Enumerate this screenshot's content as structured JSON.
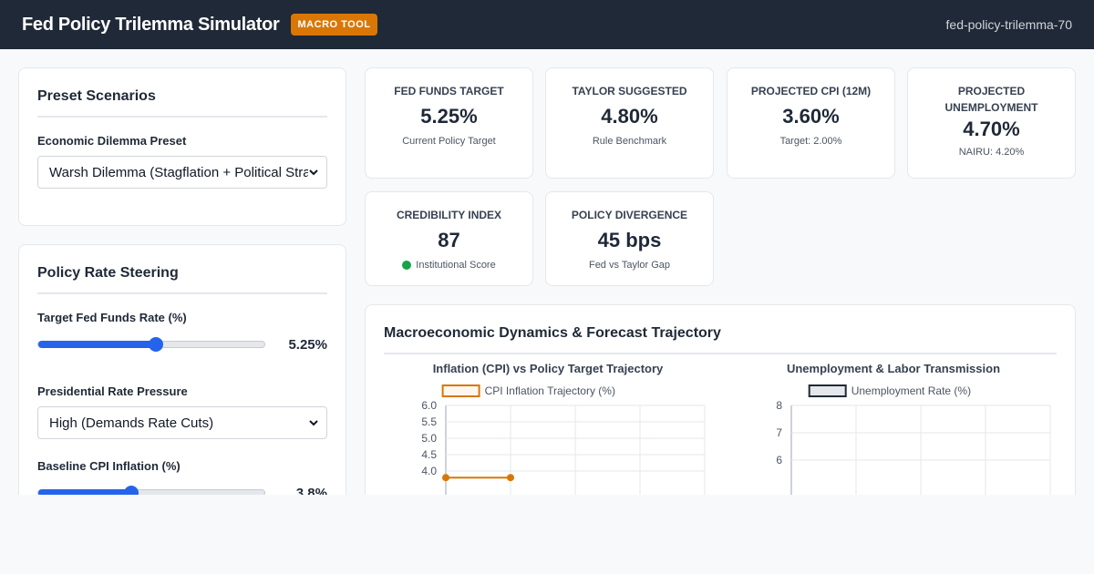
{
  "header": {
    "title": "Fed Policy Trilemma Simulator",
    "badge": "MACRO TOOL",
    "slug": "fed-policy-trilemma-70"
  },
  "preset_panel": {
    "title": "Preset Scenarios",
    "dilemma_label": "Economic Dilemma Preset",
    "dilemma_value": "Warsh Dilemma (Stagflation + Political Strain)"
  },
  "steering_panel": {
    "title": "Policy Rate Steering",
    "target_label": "Target Fed Funds Rate (%)",
    "target_value": "5.25%",
    "target_fill": 0.52,
    "pressure_label": "Presidential Rate Pressure",
    "pressure_value": "High (Demands Rate Cuts)",
    "cpi_label": "Baseline CPI Inflation (%)",
    "cpi_value": "3.8%",
    "cpi_fill": 0.41
  },
  "kpis": [
    {
      "label": "Fed Funds Target",
      "value": "5.25%",
      "sub": "Current Policy Target"
    },
    {
      "label": "Taylor Suggested",
      "value": "4.80%",
      "sub": "Rule Benchmark"
    },
    {
      "label": "Projected CPI (12M)",
      "value": "3.60%",
      "sub": "Target: 2.00%"
    },
    {
      "label": "Projected Unemployment",
      "value": "4.70%",
      "sub": "NAIRU: 4.20%"
    },
    {
      "label": "Credibility Index",
      "value": "87",
      "sub": "Institutional Score",
      "status_color": "#16a34a"
    },
    {
      "label": "Policy Divergence",
      "value": "45 bps",
      "sub": "Fed vs Taylor Gap"
    }
  ],
  "charts_panel": {
    "title": "Macroeconomic Dynamics & Forecast Trajectory"
  },
  "chart_data": [
    {
      "type": "line",
      "title": "Inflation (CPI) vs Policy Target Trajectory",
      "legend_position": "top",
      "series": [
        {
          "name": "CPI Inflation Trajectory (%)",
          "color": "#d97706",
          "x": [
            0,
            1
          ],
          "values": [
            3.8,
            3.8
          ]
        }
      ],
      "yticks": [
        "6.0",
        "5.5",
        "5.0",
        "4.5",
        "4.0"
      ],
      "ylim": [
        3.5,
        6.0
      ],
      "grid": true
    },
    {
      "type": "line",
      "title": "Unemployment & Labor Transmission",
      "legend_position": "top",
      "series": [
        {
          "name": "Unemployment Rate (%)",
          "color": "#1f2937",
          "values": []
        }
      ],
      "yticks": [
        "8",
        "7",
        "6"
      ],
      "ylim": [
        4,
        8
      ],
      "grid": true
    }
  ]
}
